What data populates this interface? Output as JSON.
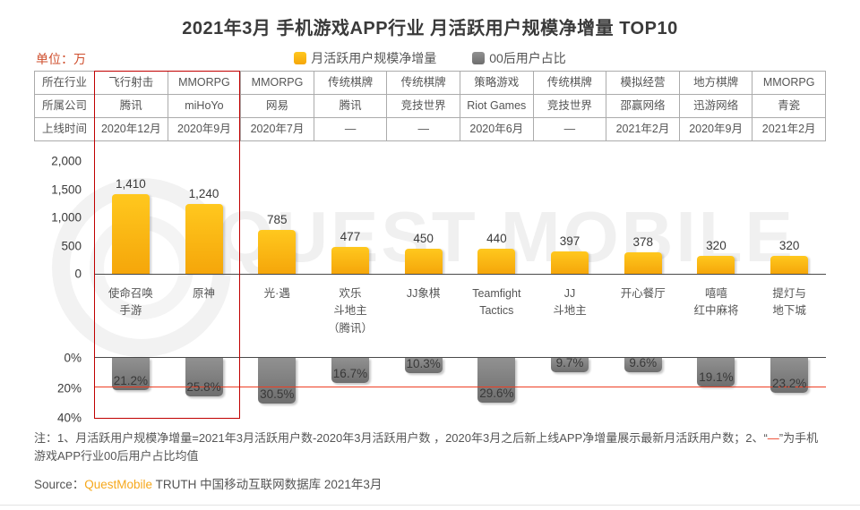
{
  "title": "2021年3月 手机游戏APP行业 月活跃用户规模净增量 TOP10",
  "unit_label": "单位：万",
  "legend": {
    "series1_label": "月活跃用户规模净增量",
    "series2_label": "00后用户占比"
  },
  "table": {
    "row_headers": [
      "所在行业",
      "所属公司",
      "上线时间"
    ]
  },
  "apps": [
    {
      "industry": "飞行射击",
      "company": "腾讯",
      "launch": "2020年12月",
      "name": "使命召唤\n手游",
      "value_label": "1,410",
      "pct_label": "21.2%"
    },
    {
      "industry": "MMORPG",
      "company": "miHoYo",
      "launch": "2020年9月",
      "name": "原神",
      "value_label": "1,240",
      "pct_label": "25.8%"
    },
    {
      "industry": "MMORPG",
      "company": "网易",
      "launch": "2020年7月",
      "name": "光·遇",
      "value_label": "785",
      "pct_label": "30.5%"
    },
    {
      "industry": "传统棋牌",
      "company": "腾讯",
      "launch": "—",
      "name": "欢乐\n斗地主\n（腾讯）",
      "value_label": "477",
      "pct_label": "16.7%"
    },
    {
      "industry": "传统棋牌",
      "company": "竞技世界",
      "launch": "—",
      "name": "JJ象棋",
      "value_label": "450",
      "pct_label": "10.3%"
    },
    {
      "industry": "策略游戏",
      "company": "Riot Games",
      "launch": "2020年6月",
      "name": "Teamfight\nTactics",
      "value_label": "440",
      "pct_label": "29.6%"
    },
    {
      "industry": "传统棋牌",
      "company": "竞技世界",
      "launch": "—",
      "name": "JJ\n斗地主",
      "value_label": "397",
      "pct_label": "9.7%"
    },
    {
      "industry": "模拟经营",
      "company": "邵赢网络",
      "launch": "2021年2月",
      "name": "开心餐厅",
      "value_label": "378",
      "pct_label": "9.6%"
    },
    {
      "industry": "地方棋牌",
      "company": "迅游网络",
      "launch": "2020年9月",
      "name": "嘻嘻\n红中麻将",
      "value_label": "320",
      "pct_label": "19.1%"
    },
    {
      "industry": "MMORPG",
      "company": "青瓷",
      "launch": "2021年2月",
      "name": "提灯与\n地下城",
      "value_label": "320",
      "pct_label": "23.2%"
    }
  ],
  "chart_data": {
    "type": "bar",
    "title": "2021年3月 手机游戏APP行业 月活跃用户规模净增量 TOP10",
    "categories": [
      "使命召唤手游",
      "原神",
      "光·遇",
      "欢乐斗地主（腾讯）",
      "JJ象棋",
      "Teamfight Tactics",
      "JJ斗地主",
      "开心餐厅",
      "嘻嘻红中麻将",
      "提灯与地下城"
    ],
    "series": [
      {
        "name": "月活跃用户规模净增量",
        "unit": "万",
        "values": [
          1410,
          1240,
          785,
          477,
          450,
          440,
          397,
          378,
          320,
          320
        ]
      },
      {
        "name": "00后用户占比",
        "unit": "%",
        "values": [
          21.2,
          25.8,
          30.5,
          16.7,
          10.3,
          29.6,
          9.7,
          9.6,
          19.1,
          23.2
        ],
        "inverted_axis": true
      }
    ],
    "top_axis": {
      "ticks": [
        "2,000",
        "1,500",
        "1,000",
        "500",
        "0"
      ],
      "min": 0,
      "max": 2000,
      "grid": false
    },
    "bottom_axis": {
      "ticks": [
        "0%",
        "20%",
        "40%"
      ],
      "min": 0,
      "max": 40,
      "inverted": true,
      "grid": false
    },
    "average_line_value": 19,
    "average_line_meaning": "手机游戏APP行业00后用户占比均值",
    "highlighted_categories": [
      "使命召唤手游",
      "原神"
    ],
    "legend_position": "top-center"
  },
  "note": {
    "before": "注：1、月活跃用户规模净增量=2021年3月活跃用户数-2020年3月活跃用户数 ，2020年3月之后新上线APP净增量展示最新月活跃用户数；2、“",
    "dash": "—",
    "after": "”为手机游戏APP行业00后用户占比均值"
  },
  "source": {
    "prefix": "Source：",
    "brand": "QuestMobile",
    "rest": " TRUTH 中国移动互联网数据库 2021年3月"
  },
  "watermark": "QUEST MOBILE",
  "colors": {
    "bar_orange_top": "#ffc81e",
    "bar_orange_bottom": "#f5a60a",
    "bar_gray_top": "#919191",
    "bar_gray_bottom": "#6e6e6e",
    "highlight_red": "#c00000",
    "avg_line_red": "#ee3e23",
    "unit_red": "#cf4f2e",
    "source_orange": "#f6a81c",
    "text_dark": "#3a3a3a",
    "text_mid": "#555555",
    "border_gray": "#ababab",
    "watermark_gray": "#f0f0f0"
  }
}
